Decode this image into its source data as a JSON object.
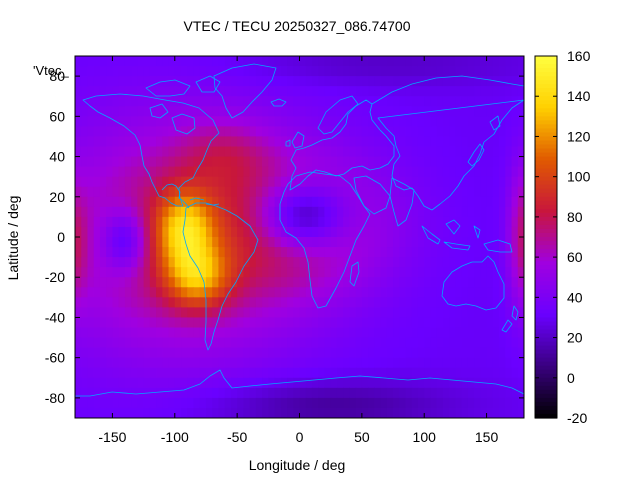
{
  "chart_data": {
    "type": "heatmap",
    "title": "VTEC / TECU 20250327_086.74700",
    "xlabel": "Longitude / deg",
    "ylabel": "Latitude / deg",
    "series_label": "'Vtec_",
    "xlim": [
      -180,
      180
    ],
    "ylim": [
      -90,
      90
    ],
    "x_ticks": [
      -150,
      -100,
      -50,
      0,
      50,
      100,
      150
    ],
    "y_ticks": [
      -80,
      -60,
      -40,
      -20,
      0,
      20,
      40,
      60,
      80
    ],
    "colorbar": {
      "range": [
        -20,
        160
      ],
      "ticks": [
        -20,
        0,
        20,
        40,
        60,
        80,
        100,
        120,
        140,
        160
      ],
      "palette": [
        "#000000",
        "#3a0080",
        "#6a00ff",
        "#a000e0",
        "#c8163c",
        "#e05a00",
        "#ffd000",
        "#ffff40"
      ]
    },
    "model": {
      "background": 30,
      "features": [
        {
          "name": "equatorial-anomaly-americas",
          "lon": -95,
          "lat": 0,
          "sigma_lon": 75,
          "sigma_lat": 42,
          "value": 50
        },
        {
          "name": "peak-north-crest",
          "lon": -92,
          "lat": 4,
          "sigma_lon": 16,
          "sigma_lat": 13,
          "value": 60
        },
        {
          "name": "peak-south-crest",
          "lon": -82,
          "lat": -20,
          "sigma_lon": 18,
          "sigma_lat": 11,
          "value": 55
        },
        {
          "name": "trough-pacific",
          "lon": -140,
          "lat": -2,
          "sigma_lon": 13,
          "sigma_lat": 11,
          "value": -40
        },
        {
          "name": "atlantic-ring",
          "lon": 5,
          "lat": 6,
          "sigma_lon": 52,
          "sigma_lat": 24,
          "value": 34
        },
        {
          "name": "low-africa-hole",
          "lon": 2,
          "lat": 10,
          "sigma_lon": 26,
          "sigma_lat": 12,
          "value": -60
        },
        {
          "name": "high-north-atlantic",
          "lon": -60,
          "lat": 42,
          "sigma_lon": 26,
          "sigma_lat": 12,
          "value": 18
        },
        {
          "name": "enhancement-east-edge",
          "lon": 180,
          "lat": 0,
          "sigma_lon": 9,
          "sigma_lat": 26,
          "value": 45
        },
        {
          "name": "enhancement-west-edge",
          "lon": -180,
          "lat": -4,
          "sigma_lon": 7,
          "sigma_lat": 20,
          "value": 22
        },
        {
          "name": "low-antarctic",
          "lon": 20,
          "lat": -84,
          "sigma_lon": 70,
          "sigma_lat": 9,
          "value": -20
        },
        {
          "name": "low-north-polar",
          "lon": 60,
          "lat": 86,
          "sigma_lon": 90,
          "sigma_lat": 8,
          "value": -10
        }
      ]
    }
  }
}
